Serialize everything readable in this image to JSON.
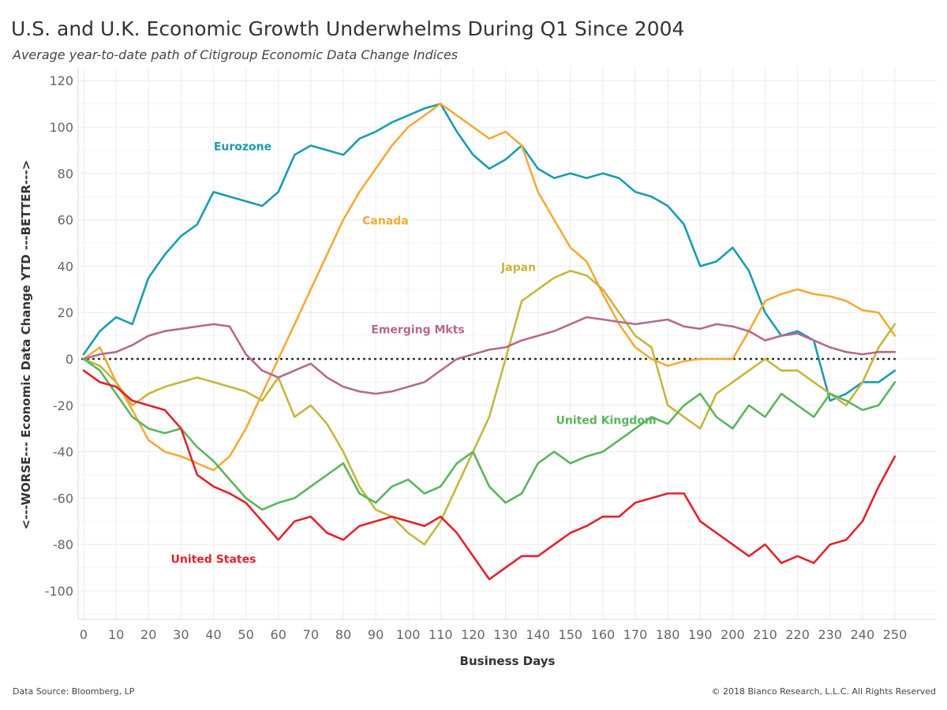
{
  "header": {
    "title": "U.S. and U.K. Economic Growth Underwhelms During Q1 Since 2004",
    "subtitle": "Average year-to-date path of Citigroup Economic Data Change Indices"
  },
  "footer": {
    "source": "Data Source: Bloomberg, LP",
    "copyright": "© 2018 Bianco Research, L.L.C. All Rights Reserved"
  },
  "chart_data": {
    "type": "line",
    "title": "U.S. and U.K. Economic Growth Underwhelms During Q1 Since 2004",
    "subtitle": "Average year-to-date path of Citigroup Economic Data Change Indices",
    "xlabel": "Business Days",
    "ylabel": "<---WORSE--- Economic Data Change YTD ---BETTER--->",
    "xlim": [
      0,
      250
    ],
    "ylim": [
      -100,
      120
    ],
    "x_ticks": [
      "0",
      "10",
      "20",
      "30",
      "40",
      "50",
      "60",
      "70",
      "80",
      "90",
      "100",
      "110",
      "120",
      "130",
      "140",
      "150",
      "160",
      "170",
      "180",
      "190",
      "200",
      "210",
      "220",
      "230",
      "240",
      "250"
    ],
    "x_tick_values": [
      0,
      10,
      20,
      30,
      40,
      50,
      60,
      70,
      80,
      90,
      100,
      110,
      120,
      130,
      140,
      150,
      160,
      170,
      180,
      190,
      200,
      210,
      220,
      230,
      240,
      250
    ],
    "y_ticks": [
      "120",
      "100",
      "80",
      "60",
      "40",
      "20",
      "0",
      "-20",
      "-40",
      "-60",
      "-80",
      "-100"
    ],
    "y_tick_values": [
      120,
      100,
      80,
      60,
      40,
      20,
      0,
      -20,
      -40,
      -60,
      -80,
      -100
    ],
    "grid": true,
    "zero_line": "dotted",
    "legend": "inline labels",
    "series": [
      {
        "name": "Eurozone",
        "color": "#1a9cb0",
        "label_pos": [
          49,
          90
        ],
        "x": [
          0,
          5,
          10,
          15,
          20,
          25,
          30,
          35,
          40,
          45,
          50,
          55,
          60,
          65,
          70,
          75,
          80,
          85,
          90,
          95,
          100,
          105,
          110,
          115,
          120,
          125,
          130,
          135,
          140,
          145,
          150,
          155,
          160,
          165,
          170,
          175,
          180,
          185,
          190,
          195,
          200,
          205,
          210,
          215,
          220,
          225,
          230,
          235,
          240,
          245,
          250
        ],
        "values": [
          2,
          12,
          18,
          15,
          35,
          45,
          53,
          58,
          72,
          70,
          68,
          66,
          72,
          88,
          92,
          90,
          88,
          95,
          98,
          102,
          105,
          108,
          110,
          98,
          88,
          82,
          86,
          92,
          82,
          78,
          80,
          78,
          80,
          78,
          72,
          70,
          66,
          58,
          40,
          42,
          48,
          38,
          20,
          10,
          12,
          8,
          -18,
          -15,
          -10,
          -10,
          -5
        ]
      },
      {
        "name": "Canada",
        "color": "#f5a936",
        "label_pos": [
          93,
          58
        ],
        "x": [
          0,
          5,
          10,
          15,
          20,
          25,
          30,
          35,
          40,
          45,
          50,
          55,
          60,
          65,
          70,
          75,
          80,
          85,
          90,
          95,
          100,
          105,
          110,
          115,
          120,
          125,
          130,
          135,
          140,
          145,
          150,
          155,
          160,
          165,
          170,
          175,
          180,
          185,
          190,
          195,
          200,
          205,
          210,
          215,
          220,
          225,
          230,
          235,
          240,
          245,
          250
        ],
        "values": [
          0,
          5,
          -10,
          -22,
          -35,
          -40,
          -42,
          -45,
          -48,
          -42,
          -30,
          -15,
          0,
          15,
          30,
          45,
          60,
          72,
          82,
          92,
          100,
          105,
          110,
          105,
          100,
          95,
          98,
          92,
          72,
          60,
          48,
          42,
          28,
          15,
          5,
          0,
          -3,
          -1,
          0,
          0,
          0,
          12,
          25,
          28,
          30,
          28,
          27,
          25,
          21,
          20,
          10
        ]
      },
      {
        "name": "Japan",
        "color": "#c5b63f",
        "label_pos": [
          134,
          38
        ],
        "x": [
          0,
          5,
          10,
          15,
          20,
          25,
          30,
          35,
          40,
          45,
          50,
          55,
          60,
          65,
          70,
          75,
          80,
          85,
          90,
          95,
          100,
          105,
          110,
          115,
          120,
          125,
          130,
          135,
          140,
          145,
          150,
          155,
          160,
          165,
          170,
          175,
          180,
          185,
          190,
          195,
          200,
          205,
          210,
          215,
          220,
          225,
          230,
          235,
          240,
          245,
          250
        ],
        "values": [
          0,
          -3,
          -10,
          -20,
          -15,
          -12,
          -10,
          -8,
          -10,
          -12,
          -14,
          -18,
          -8,
          -25,
          -20,
          -28,
          -40,
          -55,
          -65,
          -68,
          -75,
          -80,
          -70,
          -55,
          -40,
          -25,
          0,
          25,
          30,
          35,
          38,
          36,
          30,
          20,
          10,
          5,
          -20,
          -25,
          -30,
          -15,
          -10,
          -5,
          0,
          -5,
          -5,
          -10,
          -15,
          -20,
          -10,
          5,
          15
        ]
      },
      {
        "name": "Emerging Mkts",
        "color": "#b5698f",
        "label_pos": [
          103,
          11
        ],
        "x": [
          0,
          5,
          10,
          15,
          20,
          25,
          30,
          35,
          40,
          45,
          50,
          55,
          60,
          65,
          70,
          75,
          80,
          85,
          90,
          95,
          100,
          105,
          110,
          115,
          120,
          125,
          130,
          135,
          140,
          145,
          150,
          155,
          160,
          165,
          170,
          175,
          180,
          185,
          190,
          195,
          200,
          205,
          210,
          215,
          220,
          225,
          230,
          235,
          240,
          245,
          250
        ],
        "values": [
          0,
          2,
          3,
          6,
          10,
          12,
          13,
          14,
          15,
          14,
          2,
          -5,
          -8,
          -5,
          -2,
          -8,
          -12,
          -14,
          -15,
          -14,
          -12,
          -10,
          -5,
          0,
          2,
          4,
          5,
          8,
          10,
          12,
          15,
          18,
          17,
          16,
          15,
          16,
          17,
          14,
          13,
          15,
          14,
          12,
          8,
          10,
          11,
          8,
          5,
          3,
          2,
          3,
          3
        ]
      },
      {
        "name": "United Kingdom",
        "color": "#5ab55d",
        "label_pos": [
          161,
          -28
        ],
        "x": [
          0,
          5,
          10,
          15,
          20,
          25,
          30,
          35,
          40,
          45,
          50,
          55,
          60,
          65,
          70,
          75,
          80,
          85,
          90,
          95,
          100,
          105,
          110,
          115,
          120,
          125,
          130,
          135,
          140,
          145,
          150,
          155,
          160,
          165,
          170,
          175,
          180,
          185,
          190,
          195,
          200,
          205,
          210,
          215,
          220,
          225,
          230,
          235,
          240,
          245,
          250
        ],
        "values": [
          0,
          -5,
          -15,
          -25,
          -30,
          -32,
          -30,
          -38,
          -44,
          -52,
          -60,
          -65,
          -62,
          -60,
          -55,
          -50,
          -45,
          -58,
          -62,
          -55,
          -52,
          -58,
          -55,
          -45,
          -40,
          -55,
          -62,
          -58,
          -45,
          -40,
          -45,
          -42,
          -40,
          -35,
          -30,
          -25,
          -28,
          -20,
          -15,
          -25,
          -30,
          -20,
          -25,
          -15,
          -20,
          -25,
          -15,
          -18,
          -22,
          -20,
          -10
        ]
      },
      {
        "name": "United States",
        "color": "#e3212d",
        "label_pos": [
          40,
          -88
        ],
        "x": [
          0,
          5,
          10,
          15,
          20,
          25,
          30,
          35,
          40,
          45,
          50,
          55,
          60,
          65,
          70,
          75,
          80,
          85,
          90,
          95,
          100,
          105,
          110,
          115,
          120,
          125,
          130,
          135,
          140,
          145,
          150,
          155,
          160,
          165,
          170,
          175,
          180,
          185,
          190,
          195,
          200,
          205,
          210,
          215,
          220,
          225,
          230,
          235,
          240,
          245,
          250
        ],
        "values": [
          -5,
          -10,
          -12,
          -18,
          -20,
          -22,
          -30,
          -50,
          -55,
          -58,
          -62,
          -70,
          -78,
          -70,
          -68,
          -75,
          -78,
          -72,
          -70,
          -68,
          -70,
          -72,
          -68,
          -75,
          -85,
          -95,
          -90,
          -85,
          -85,
          -80,
          -75,
          -72,
          -68,
          -68,
          -62,
          -60,
          -58,
          -58,
          -70,
          -75,
          -80,
          -85,
          -80,
          -88,
          -85,
          -88,
          -80,
          -78,
          -70,
          -55,
          -42
        ]
      }
    ]
  }
}
